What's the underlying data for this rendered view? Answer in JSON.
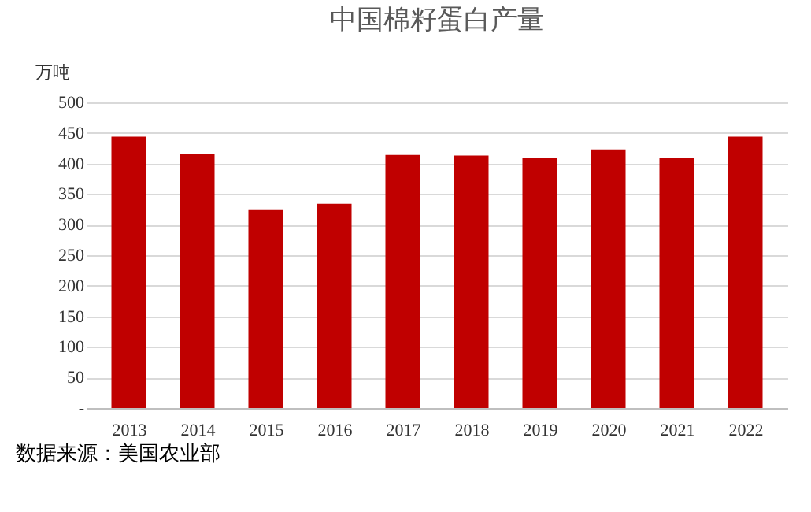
{
  "chart_data": {
    "type": "bar",
    "title": "中国棉籽蛋白产量",
    "ylabel": "万吨",
    "categories": [
      "2013",
      "2014",
      "2015",
      "2016",
      "2017",
      "2018",
      "2019",
      "2020",
      "2021",
      "2022"
    ],
    "series": [
      {
        "color": "#c00000",
        "values": [
          444,
          416,
          325,
          334,
          414,
          413,
          409,
          423,
          409,
          444
        ]
      }
    ],
    "ylim": [
      0,
      500
    ],
    "yticks": [
      {
        "value": 0,
        "label": "-"
      },
      50,
      100,
      150,
      200,
      250,
      300,
      350,
      400,
      450,
      500
    ],
    "grid": "y",
    "legend": false,
    "annotations": [
      "数据来源：美国农业部"
    ]
  }
}
